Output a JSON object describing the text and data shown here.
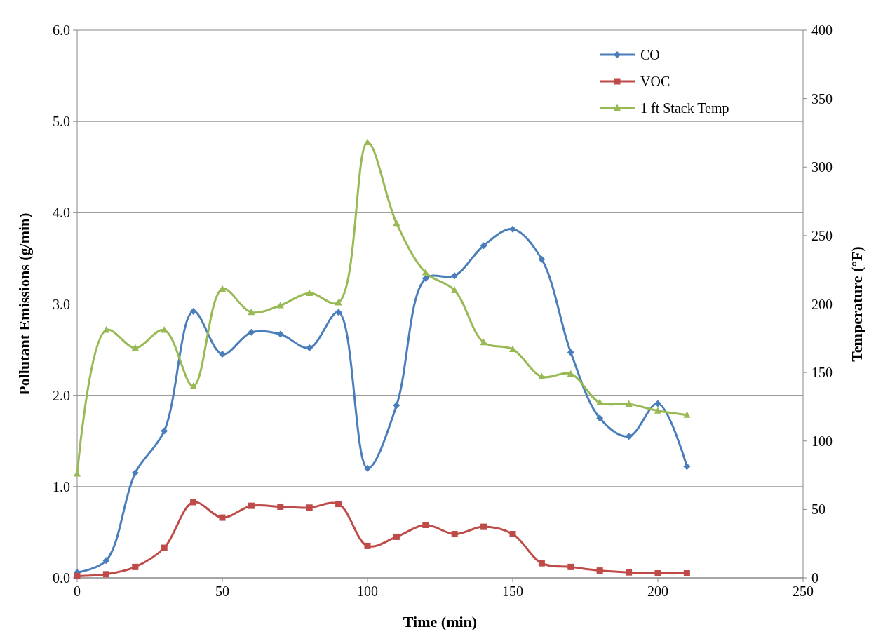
{
  "chart_data": {
    "type": "line",
    "xlabel": "Time (min)",
    "ylabel": "Pollutant Emissions (g/min)",
    "y2label": "Temperature (°F)",
    "x": [
      0,
      10,
      20,
      30,
      40,
      50,
      60,
      70,
      80,
      90,
      100,
      110,
      120,
      130,
      140,
      150,
      160,
      170,
      180,
      190,
      200,
      210
    ],
    "series": [
      {
        "name": "CO",
        "color": "#4a7ebb",
        "marker": "diamond",
        "values": [
          0.06,
          0.19,
          1.15,
          1.61,
          2.92,
          2.45,
          2.69,
          2.67,
          2.52,
          2.91,
          1.2,
          1.89,
          3.28,
          3.31,
          3.64,
          3.82,
          3.49,
          2.47,
          1.75,
          1.55,
          1.91,
          1.22
        ]
      },
      {
        "name": "VOC",
        "color": "#be4b48",
        "marker": "square",
        "values": [
          0.02,
          0.04,
          0.12,
          0.33,
          0.83,
          0.66,
          0.79,
          0.78,
          0.77,
          0.81,
          0.35,
          0.45,
          0.58,
          0.48,
          0.56,
          0.48,
          0.16,
          0.12,
          0.08,
          0.06,
          0.05,
          0.05
        ]
      },
      {
        "name": "1 ft Stack Temp",
        "color": "#98b954",
        "marker": "triangle",
        "axis": "y2",
        "values": [
          76,
          181,
          168,
          181,
          140,
          211,
          194,
          199,
          208,
          201,
          318,
          259,
          223,
          210,
          172,
          167,
          147,
          149,
          128,
          127,
          122,
          119
        ]
      }
    ],
    "xlim": [
      0,
      250
    ],
    "xticks": [
      0,
      50,
      100,
      150,
      200,
      250
    ],
    "ylim": [
      0,
      6
    ],
    "yticks": [
      {
        "value": 0,
        "label": "0.0"
      },
      {
        "value": 1,
        "label": "1.0"
      },
      {
        "value": 2,
        "label": "2.0"
      },
      {
        "value": 3,
        "label": "3.0"
      },
      {
        "value": 4,
        "label": "4.0"
      },
      {
        "value": 5,
        "label": "5.0"
      },
      {
        "value": 6,
        "label": "6.0"
      }
    ],
    "y2lim": [
      0,
      400
    ],
    "y2ticks": [
      0,
      50,
      100,
      150,
      200,
      250,
      300,
      350,
      400
    ],
    "grid": "y",
    "legend": "top right",
    "line_style": "solid"
  }
}
